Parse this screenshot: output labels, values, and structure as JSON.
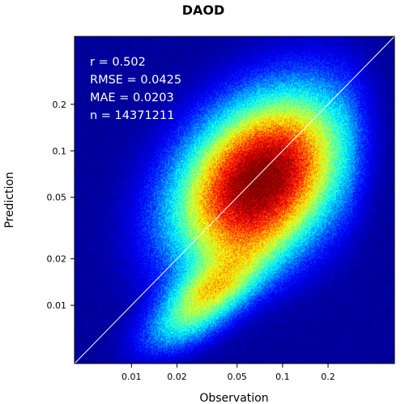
{
  "chart_data": {
    "type": "heatmap",
    "subtype": "density-scatter",
    "title": "DAOD",
    "xlabel": "Observation",
    "ylabel": "Prediction",
    "x_scale": "log",
    "y_scale": "log",
    "xlim": [
      0.0042,
      0.55
    ],
    "ylim": [
      0.0042,
      0.55
    ],
    "x_ticks": [
      0.01,
      0.02,
      0.05,
      0.1,
      0.2
    ],
    "x_tick_labels": [
      "0.01",
      "0.02",
      "0.05",
      "0.1",
      "0.2"
    ],
    "y_ticks": [
      0.01,
      0.02,
      0.05,
      0.1,
      0.2
    ],
    "y_tick_labels": [
      "0.01",
      "0.02",
      "0.05",
      "0.1",
      "0.2"
    ],
    "reference_line": "1:1",
    "density_peak": {
      "x": 0.07,
      "y": 0.065
    },
    "colormap": [
      "#00008f",
      "#0000ff",
      "#00ffff",
      "#ffff00",
      "#ff0000",
      "#800000"
    ],
    "background_color": "#00008f",
    "line_color": "#ffffff",
    "grid": false,
    "legend": "none",
    "stats": [
      {
        "label": "r = 0.502"
      },
      {
        "label": "RMSE = 0.0425"
      },
      {
        "label": "MAE = 0.0203"
      },
      {
        "label": "n = 14371211"
      }
    ]
  }
}
